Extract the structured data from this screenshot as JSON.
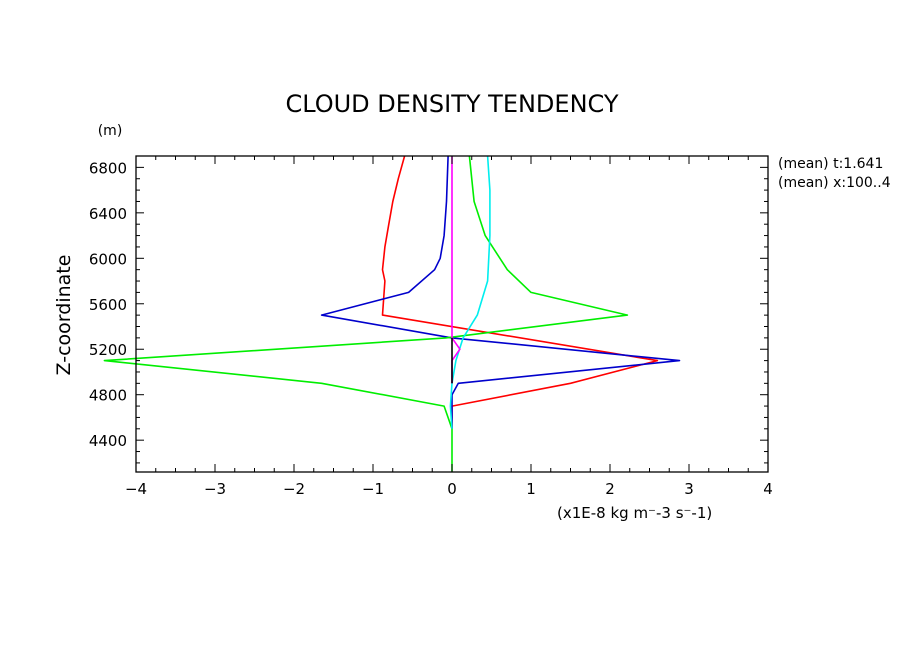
{
  "chart_data": {
    "type": "line",
    "title": "CLOUD DENSITY TENDENCY",
    "ylabel": "Z-coordinate",
    "yunit": "(m)",
    "xlabel": "(x1E-8 kg m⁻-3 s⁻-1)",
    "xlim": [
      -4,
      4
    ],
    "ylim": [
      4120,
      6900
    ],
    "x_ticks": [
      -4,
      -3,
      -2,
      -1,
      0,
      1,
      2,
      3,
      4
    ],
    "x_tick_labels": [
      "−4",
      "−3",
      "−2",
      "−1",
      "0",
      "1",
      "2",
      "3",
      "4"
    ],
    "y_ticks": [
      4400,
      4800,
      5200,
      5600,
      6000,
      6400,
      6800
    ],
    "y_tick_labels": [
      "4400",
      "4800",
      "5200",
      "5600",
      "6000",
      "6400",
      "6800"
    ],
    "grid": false,
    "annotations": [
      "(mean) t:1.641",
      "(mean) x:100..4"
    ],
    "series": [
      {
        "color": "#ff0000",
        "points": [
          [
            -0.6,
            6900
          ],
          [
            -0.68,
            6700
          ],
          [
            -0.75,
            6500
          ],
          [
            -0.8,
            6300
          ],
          [
            -0.85,
            6100
          ],
          [
            -0.88,
            5900
          ],
          [
            -0.85,
            5800
          ],
          [
            -0.88,
            5500
          ],
          [
            2.6,
            5100
          ],
          [
            1.5,
            4900
          ],
          [
            0.0,
            4700
          ],
          [
            0.0,
            4500
          ]
        ]
      },
      {
        "color": "#0000cc",
        "points": [
          [
            -0.05,
            6900
          ],
          [
            -0.07,
            6500
          ],
          [
            -0.1,
            6200
          ],
          [
            -0.15,
            6000
          ],
          [
            -0.22,
            5900
          ],
          [
            -0.55,
            5700
          ],
          [
            -1.65,
            5500
          ],
          [
            0.0,
            5300
          ],
          [
            2.88,
            5100
          ],
          [
            0.08,
            4900
          ],
          [
            0.0,
            4800
          ],
          [
            0.0,
            4500
          ]
        ]
      },
      {
        "color": "#00ee00",
        "points": [
          [
            0.22,
            6900
          ],
          [
            0.28,
            6500
          ],
          [
            0.42,
            6200
          ],
          [
            0.7,
            5900
          ],
          [
            1.0,
            5700
          ],
          [
            2.22,
            5500
          ],
          [
            -0.08,
            5300
          ],
          [
            -4.4,
            5100
          ],
          [
            -1.65,
            4900
          ],
          [
            -0.1,
            4700
          ],
          [
            0.0,
            4500
          ],
          [
            0.0,
            4120
          ]
        ]
      },
      {
        "color": "#00eeee",
        "points": [
          [
            0.45,
            6900
          ],
          [
            0.48,
            6600
          ],
          [
            0.48,
            6200
          ],
          [
            0.45,
            5800
          ],
          [
            0.32,
            5500
          ],
          [
            0.14,
            5300
          ],
          [
            0.05,
            5100
          ],
          [
            0.0,
            4900
          ],
          [
            -0.02,
            4700
          ],
          [
            0.0,
            4500
          ]
        ]
      },
      {
        "color": "#ff00ff",
        "points": [
          [
            0.0,
            6900
          ],
          [
            0.0,
            5300
          ],
          [
            0.1,
            5200
          ],
          [
            0.0,
            5100
          ],
          [
            0.0,
            4900
          ]
        ]
      },
      {
        "color": "#000000",
        "points": [
          [
            0.0,
            5300
          ],
          [
            0.0,
            4900
          ]
        ]
      }
    ]
  }
}
